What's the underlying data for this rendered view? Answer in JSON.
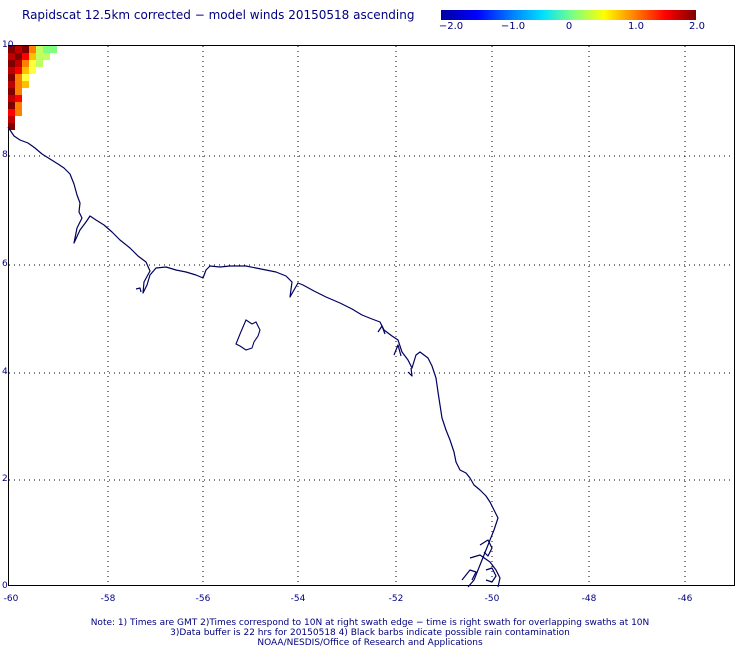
{
  "title": "Rapidscat 12.5km corrected − model winds 20150518 ascending",
  "colorbar": {
    "ticks": [
      "−2.0",
      "−1.0",
      "0",
      "1.0",
      "2.0"
    ],
    "colors": [
      "#0000a0",
      "#0000ff",
      "#00e0ff",
      "#ffff00",
      "#ff0000",
      "#800000"
    ]
  },
  "axes": {
    "x_ticks": [
      "-60",
      "-58",
      "-56",
      "-54",
      "-52",
      "-50",
      "-48",
      "-46"
    ],
    "y_ticks": [
      "10",
      "8",
      "6",
      "4",
      "2",
      "0"
    ]
  },
  "map": {
    "coastline_color": "#000060",
    "grid_style": "dotted",
    "data_cell_colors": [
      "#800000",
      "#c00000",
      "#ff0000",
      "#ff8000",
      "#ffc000",
      "#ffff40",
      "#c0ff60",
      "#80ff80"
    ]
  },
  "notes": {
    "line1": "Note: 1) Times are GMT 2)Times correspond to 10N at right swath edge − time is right swath for overlapping swaths at 10N",
    "line2": "3)Data buffer is 22 hrs for 20150518 4) Black barbs indicate possible rain contamination",
    "line3": "NOAA/NESDIS/Office of Research and Applications"
  }
}
